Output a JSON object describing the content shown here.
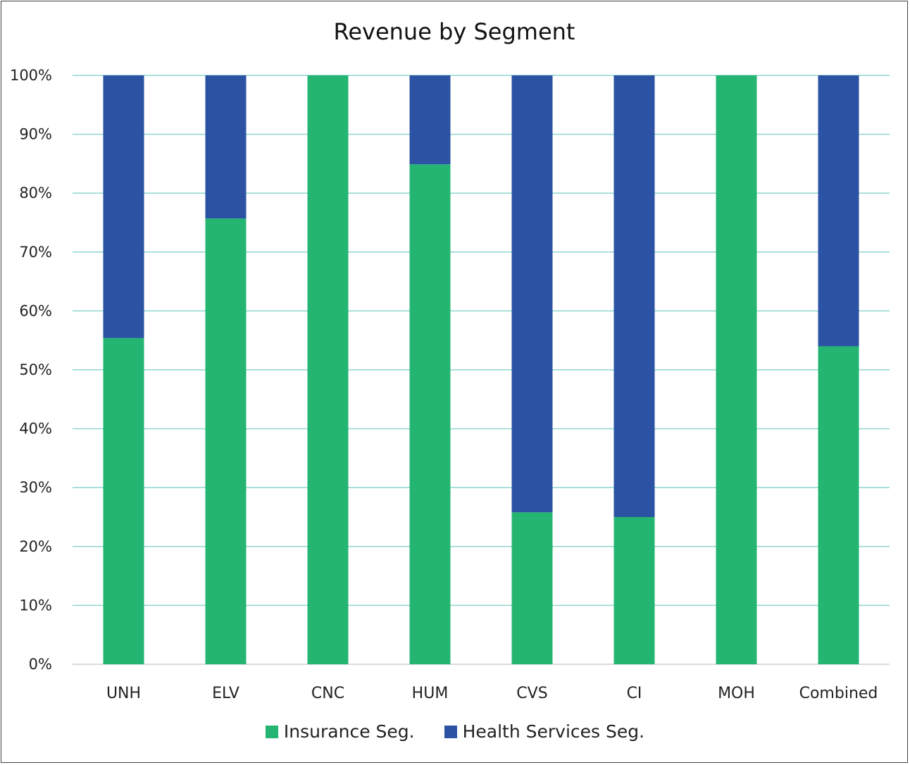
{
  "chart_data": {
    "type": "bar",
    "stacked": true,
    "title": "Revenue by Segment",
    "xlabel": "",
    "ylabel": "",
    "ylim": [
      0,
      100
    ],
    "yticks": [
      "0%",
      "10%",
      "20%",
      "30%",
      "40%",
      "50%",
      "60%",
      "70%",
      "80%",
      "90%",
      "100%"
    ],
    "categories": [
      "UNH",
      "ELV",
      "CNC",
      "HUM",
      "CVS",
      "CI",
      "MOH",
      "Combined"
    ],
    "series": [
      {
        "name": "Insurance Seg.",
        "color": "#25b572",
        "values": [
          55.4,
          75.7,
          100,
          84.9,
          25.8,
          25.0,
          100,
          54.0
        ]
      },
      {
        "name": "Health Services Seg.",
        "color": "#2b52a3",
        "values": [
          44.6,
          24.3,
          0,
          15.1,
          74.2,
          75.0,
          0,
          46.0
        ]
      }
    ],
    "grid": true,
    "gridline_color": "#8fd6cf",
    "legend_position": "bottom-center"
  }
}
